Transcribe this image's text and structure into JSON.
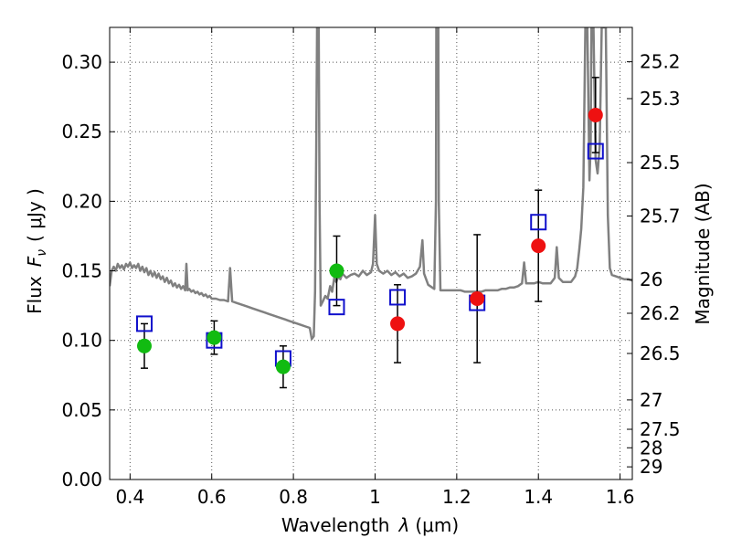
{
  "chart_data": {
    "type": "scatter",
    "title": "",
    "xlabel_text": "Wavelength",
    "xlabel_symbol": "λ",
    "xlabel_unit": "(μm)",
    "ylabel_text": "Flux",
    "ylabel_symbol": "F",
    "ylabel_subscript": "ν",
    "ylabel_unit": "( μJy )",
    "y2label": "Magnitude (AB)",
    "xlim": [
      0.35,
      1.63
    ],
    "ylim": [
      0.0,
      0.325
    ],
    "grid": true,
    "xticks": [
      0.4,
      0.6,
      0.8,
      1.0,
      1.2,
      1.4,
      1.6
    ],
    "xtick_labels": [
      "0.4",
      "0.6",
      "0.8",
      "1",
      "1.2",
      "1.4",
      "1.6"
    ],
    "yticks": [
      0.0,
      0.05,
      0.1,
      0.15,
      0.2,
      0.25,
      0.3
    ],
    "ytick_labels": [
      "0.00",
      "0.05",
      "0.10",
      "0.15",
      "0.20",
      "0.25",
      "0.30"
    ],
    "y2ticks": [
      {
        "label": "25.2",
        "flux": 0.3003
      },
      {
        "label": "25.3",
        "flux": 0.2738
      },
      {
        "label": "25.5",
        "flux": 0.2278
      },
      {
        "label": "25.7",
        "flux": 0.1894
      },
      {
        "label": "26",
        "flux": 0.1437
      },
      {
        "label": "26.2",
        "flux": 0.1195
      },
      {
        "label": "26.5",
        "flux": 0.0906
      },
      {
        "label": "27",
        "flux": 0.0572
      },
      {
        "label": "27.5",
        "flux": 0.0361
      },
      {
        "label": "28",
        "flux": 0.0228
      },
      {
        "label": "29",
        "flux": 0.0091
      }
    ],
    "observed": [
      {
        "x": 0.435,
        "y": 0.096,
        "err": 0.016,
        "color": "#11bb11"
      },
      {
        "x": 0.606,
        "y": 0.102,
        "err": 0.012,
        "color": "#11bb11"
      },
      {
        "x": 0.775,
        "y": 0.081,
        "err": 0.015,
        "color": "#11bb11"
      },
      {
        "x": 0.906,
        "y": 0.15,
        "err": 0.025,
        "color": "#11bb11"
      },
      {
        "x": 1.055,
        "y": 0.112,
        "err": 0.028,
        "color": "#ee1111"
      },
      {
        "x": 1.25,
        "y": 0.13,
        "err": 0.046,
        "color": "#ee1111"
      },
      {
        "x": 1.4,
        "y": 0.168,
        "err": 0.04,
        "color": "#ee1111"
      },
      {
        "x": 1.54,
        "y": 0.262,
        "err": 0.027,
        "color": "#ee1111"
      }
    ],
    "model": [
      {
        "x": 0.435,
        "y": 0.112
      },
      {
        "x": 0.606,
        "y": 0.1
      },
      {
        "x": 0.775,
        "y": 0.087
      },
      {
        "x": 0.906,
        "y": 0.124
      },
      {
        "x": 1.055,
        "y": 0.131
      },
      {
        "x": 1.25,
        "y": 0.127
      },
      {
        "x": 1.4,
        "y": 0.185
      },
      {
        "x": 1.54,
        "y": 0.236
      }
    ],
    "spectrum": [
      [
        0.35,
        0.139
      ],
      [
        0.355,
        0.15
      ],
      [
        0.36,
        0.153
      ],
      [
        0.365,
        0.15
      ],
      [
        0.37,
        0.155
      ],
      [
        0.375,
        0.152
      ],
      [
        0.38,
        0.154
      ],
      [
        0.385,
        0.151
      ],
      [
        0.39,
        0.155
      ],
      [
        0.395,
        0.153
      ],
      [
        0.4,
        0.156
      ],
      [
        0.405,
        0.152
      ],
      [
        0.41,
        0.154
      ],
      [
        0.415,
        0.152
      ],
      [
        0.42,
        0.155
      ],
      [
        0.425,
        0.15
      ],
      [
        0.43,
        0.153
      ],
      [
        0.435,
        0.149
      ],
      [
        0.44,
        0.152
      ],
      [
        0.445,
        0.147
      ],
      [
        0.45,
        0.15
      ],
      [
        0.455,
        0.146
      ],
      [
        0.46,
        0.149
      ],
      [
        0.465,
        0.145
      ],
      [
        0.47,
        0.148
      ],
      [
        0.475,
        0.144
      ],
      [
        0.48,
        0.146
      ],
      [
        0.485,
        0.142
      ],
      [
        0.49,
        0.145
      ],
      [
        0.495,
        0.141
      ],
      [
        0.5,
        0.143
      ],
      [
        0.505,
        0.139
      ],
      [
        0.51,
        0.141
      ],
      [
        0.515,
        0.138
      ],
      [
        0.52,
        0.14
      ],
      [
        0.525,
        0.137
      ],
      [
        0.53,
        0.139
      ],
      [
        0.535,
        0.136
      ],
      [
        0.538,
        0.155
      ],
      [
        0.541,
        0.136
      ],
      [
        0.545,
        0.137
      ],
      [
        0.55,
        0.135
      ],
      [
        0.555,
        0.136
      ],
      [
        0.56,
        0.134
      ],
      [
        0.565,
        0.135
      ],
      [
        0.57,
        0.133
      ],
      [
        0.575,
        0.134
      ],
      [
        0.58,
        0.132
      ],
      [
        0.585,
        0.133
      ],
      [
        0.59,
        0.131
      ],
      [
        0.595,
        0.132
      ],
      [
        0.6,
        0.13
      ],
      [
        0.61,
        0.13
      ],
      [
        0.62,
        0.129
      ],
      [
        0.63,
        0.129
      ],
      [
        0.64,
        0.128
      ],
      [
        0.645,
        0.152
      ],
      [
        0.65,
        0.128
      ],
      [
        0.66,
        0.127
      ],
      [
        0.67,
        0.126
      ],
      [
        0.68,
        0.125
      ],
      [
        0.69,
        0.124
      ],
      [
        0.7,
        0.123
      ],
      [
        0.71,
        0.122
      ],
      [
        0.72,
        0.121
      ],
      [
        0.73,
        0.12
      ],
      [
        0.74,
        0.119
      ],
      [
        0.75,
        0.118
      ],
      [
        0.76,
        0.117
      ],
      [
        0.77,
        0.116
      ],
      [
        0.78,
        0.115
      ],
      [
        0.79,
        0.114
      ],
      [
        0.8,
        0.113
      ],
      [
        0.81,
        0.112
      ],
      [
        0.82,
        0.111
      ],
      [
        0.83,
        0.11
      ],
      [
        0.84,
        0.109
      ],
      [
        0.845,
        0.101
      ],
      [
        0.85,
        0.103
      ],
      [
        0.853,
        0.135
      ],
      [
        0.856,
        0.24
      ],
      [
        0.858,
        0.33
      ],
      [
        0.862,
        0.33
      ],
      [
        0.864,
        0.2
      ],
      [
        0.867,
        0.125
      ],
      [
        0.872,
        0.128
      ],
      [
        0.878,
        0.132
      ],
      [
        0.884,
        0.13
      ],
      [
        0.89,
        0.139
      ],
      [
        0.895,
        0.135
      ],
      [
        0.9,
        0.145
      ],
      [
        0.905,
        0.142
      ],
      [
        0.91,
        0.146
      ],
      [
        0.915,
        0.144
      ],
      [
        0.92,
        0.148
      ],
      [
        0.93,
        0.145
      ],
      [
        0.94,
        0.147
      ],
      [
        0.95,
        0.148
      ],
      [
        0.96,
        0.146
      ],
      [
        0.97,
        0.15
      ],
      [
        0.98,
        0.147
      ],
      [
        0.99,
        0.149
      ],
      [
        0.995,
        0.155
      ],
      [
        1.0,
        0.19
      ],
      [
        1.004,
        0.155
      ],
      [
        1.01,
        0.15
      ],
      [
        1.02,
        0.148
      ],
      [
        1.03,
        0.15
      ],
      [
        1.04,
        0.147
      ],
      [
        1.05,
        0.149
      ],
      [
        1.06,
        0.146
      ],
      [
        1.07,
        0.148
      ],
      [
        1.08,
        0.145
      ],
      [
        1.09,
        0.146
      ],
      [
        1.1,
        0.148
      ],
      [
        1.11,
        0.153
      ],
      [
        1.116,
        0.172
      ],
      [
        1.12,
        0.148
      ],
      [
        1.13,
        0.14
      ],
      [
        1.14,
        0.138
      ],
      [
        1.145,
        0.137
      ],
      [
        1.149,
        0.2
      ],
      [
        1.15,
        0.33
      ],
      [
        1.155,
        0.33
      ],
      [
        1.156,
        0.2
      ],
      [
        1.16,
        0.136
      ],
      [
        1.17,
        0.136
      ],
      [
        1.18,
        0.136
      ],
      [
        1.19,
        0.136
      ],
      [
        1.2,
        0.136
      ],
      [
        1.21,
        0.136
      ],
      [
        1.22,
        0.135
      ],
      [
        1.23,
        0.135
      ],
      [
        1.24,
        0.135
      ],
      [
        1.25,
        0.135
      ],
      [
        1.26,
        0.135
      ],
      [
        1.27,
        0.136
      ],
      [
        1.28,
        0.136
      ],
      [
        1.29,
        0.136
      ],
      [
        1.3,
        0.136
      ],
      [
        1.31,
        0.137
      ],
      [
        1.32,
        0.137
      ],
      [
        1.33,
        0.138
      ],
      [
        1.34,
        0.138
      ],
      [
        1.35,
        0.139
      ],
      [
        1.36,
        0.141
      ],
      [
        1.365,
        0.156
      ],
      [
        1.37,
        0.141
      ],
      [
        1.38,
        0.141
      ],
      [
        1.39,
        0.141
      ],
      [
        1.4,
        0.142
      ],
      [
        1.41,
        0.141
      ],
      [
        1.42,
        0.141
      ],
      [
        1.43,
        0.141
      ],
      [
        1.44,
        0.145
      ],
      [
        1.445,
        0.167
      ],
      [
        1.45,
        0.145
      ],
      [
        1.46,
        0.142
      ],
      [
        1.47,
        0.142
      ],
      [
        1.48,
        0.142
      ],
      [
        1.49,
        0.146
      ],
      [
        1.495,
        0.152
      ],
      [
        1.5,
        0.165
      ],
      [
        1.505,
        0.18
      ],
      [
        1.51,
        0.21
      ],
      [
        1.515,
        0.33
      ],
      [
        1.52,
        0.33
      ],
      [
        1.525,
        0.215
      ],
      [
        1.528,
        0.24
      ],
      [
        1.53,
        0.33
      ],
      [
        1.535,
        0.33
      ],
      [
        1.54,
        0.23
      ],
      [
        1.545,
        0.22
      ],
      [
        1.55,
        0.24
      ],
      [
        1.555,
        0.33
      ],
      [
        1.565,
        0.33
      ],
      [
        1.57,
        0.19
      ],
      [
        1.575,
        0.152
      ],
      [
        1.58,
        0.147
      ],
      [
        1.59,
        0.146
      ],
      [
        1.6,
        0.145
      ],
      [
        1.61,
        0.144
      ],
      [
        1.62,
        0.144
      ],
      [
        1.63,
        0.143
      ]
    ],
    "colors": {
      "spectrum": "#808080",
      "model_marker": "#1010cc",
      "errorbar": "#000000",
      "grid": "#555555"
    }
  }
}
